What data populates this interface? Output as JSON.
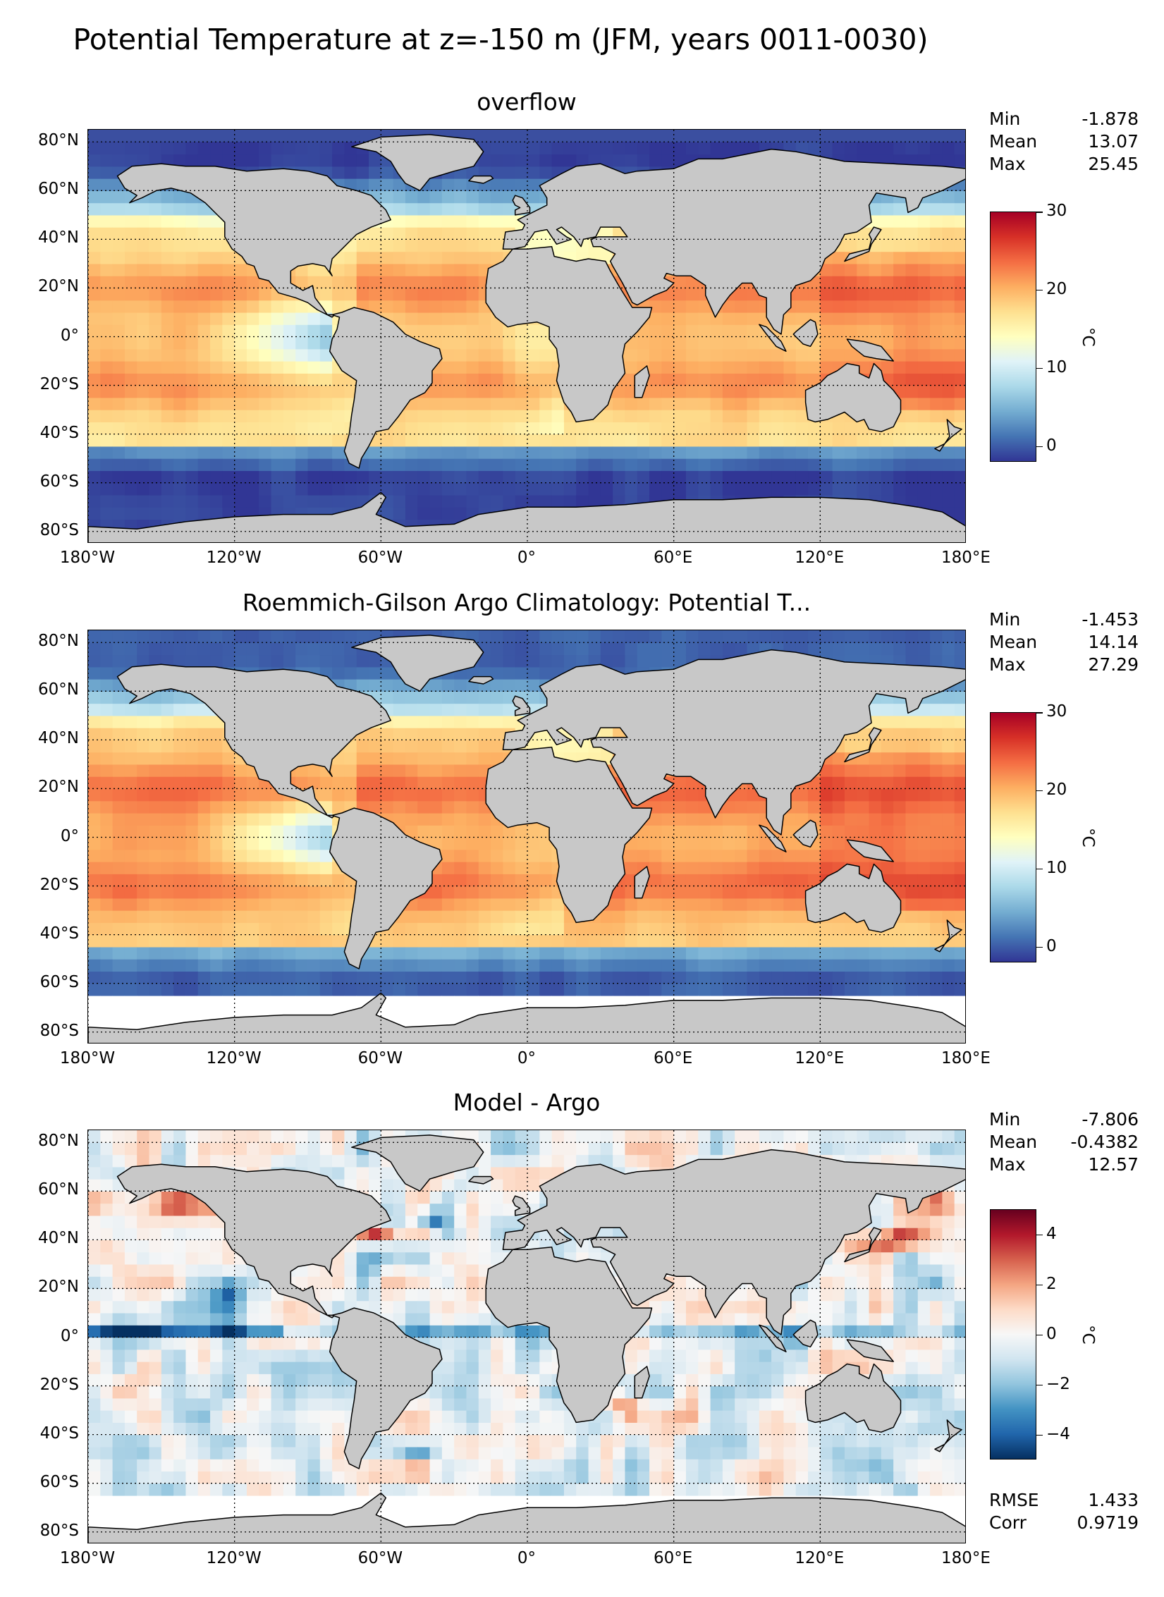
{
  "title": "Potential Temperature at z=-150 m (JFM, years 0011-0030)",
  "axes": {
    "lat_labels": [
      "80°N",
      "60°N",
      "40°N",
      "20°N",
      "0°",
      "20°S",
      "40°S",
      "60°S",
      "80°S"
    ],
    "lat_values": [
      80,
      60,
      40,
      20,
      0,
      -20,
      -40,
      -60,
      -80
    ],
    "lon_labels": [
      "180°W",
      "120°W",
      "60°W",
      "0°",
      "60°E",
      "120°E",
      "180°E"
    ],
    "lon_values": [
      -180,
      -120,
      -60,
      0,
      60,
      120,
      180
    ]
  },
  "colors": {
    "land": "#c8c8c8",
    "coast": "#000000",
    "missing": "#ffffff"
  },
  "panels": [
    {
      "title": "overflow",
      "stats": [
        {
          "label": "Min",
          "value": "-1.878"
        },
        {
          "label": "Mean",
          "value": "13.07"
        },
        {
          "label": "Max",
          "value": "25.45"
        }
      ],
      "colorbar": {
        "cmap": "RdYlBu_r",
        "min": -2,
        "max": 30,
        "ticks": [
          "0",
          "10",
          "20",
          "30"
        ],
        "tick_values": [
          0,
          10,
          20,
          30
        ],
        "unit": "°C"
      },
      "field": "model"
    },
    {
      "title": "Roemmich-Gilson Argo Climatology: Potential T...",
      "stats": [
        {
          "label": "Min",
          "value": "-1.453"
        },
        {
          "label": "Mean",
          "value": "14.14"
        },
        {
          "label": "Max",
          "value": "27.29"
        }
      ],
      "colorbar": {
        "cmap": "RdYlBu_r",
        "min": -2,
        "max": 30,
        "ticks": [
          "0",
          "10",
          "20",
          "30"
        ],
        "tick_values": [
          0,
          10,
          20,
          30
        ],
        "unit": "°C"
      },
      "field": "obs"
    },
    {
      "title": "Model - Argo",
      "stats": [
        {
          "label": "Min",
          "value": "-7.806"
        },
        {
          "label": "Mean",
          "value": "-0.4382"
        },
        {
          "label": "Max",
          "value": "12.57"
        }
      ],
      "colorbar": {
        "cmap": "RdBu_r",
        "min": -5,
        "max": 5,
        "ticks": [
          "−4",
          "−2",
          "0",
          "2",
          "4"
        ],
        "tick_values": [
          -4,
          -2,
          0,
          2,
          4
        ],
        "unit": "°C"
      },
      "field": "diff",
      "extra_stats": [
        {
          "label": "RMSE",
          "value": "1.433"
        },
        {
          "label": "Corr",
          "value": "0.9719"
        }
      ]
    }
  ]
}
